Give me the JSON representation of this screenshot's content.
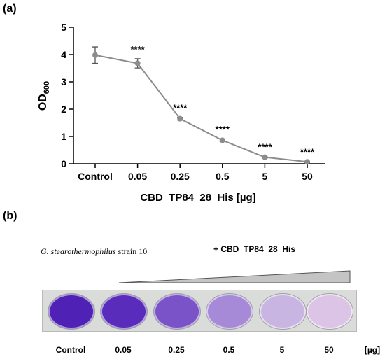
{
  "panel_a": {
    "label": "(a)"
  },
  "panel_b": {
    "label": "(b)",
    "strain_name": "G. stearothermophilus",
    "strain_suffix": " strain 10",
    "construct": "+ CBD_TP84_28_His",
    "unit": "[µg]",
    "wells": [
      {
        "label": "Control",
        "color": "#4f21b4"
      },
      {
        "label": "0.05",
        "color": "#5a2cbc"
      },
      {
        "label": "0.25",
        "color": "#7a53c8"
      },
      {
        "label": "0.5",
        "color": "#a68ad8"
      },
      {
        "label": "5",
        "color": "#c9b5e2"
      },
      {
        "label": "50",
        "color": "#dcc4e6"
      }
    ]
  },
  "chart_data": {
    "type": "line",
    "categories": [
      "Control",
      "0.05",
      "0.25",
      "0.5",
      "5",
      "50"
    ],
    "series": [
      {
        "values": [
          3.98,
          3.68,
          1.65,
          0.86,
          0.24,
          0.07
        ],
        "errors": [
          0.3,
          0.17,
          0.05,
          0.05,
          0.03,
          0.02
        ],
        "color": "#8c8c8c"
      }
    ],
    "annotations": [
      "",
      "****",
      "****",
      "****",
      "****",
      "****"
    ],
    "xlabel": "CBD_TP84_28_His [µg]",
    "ylabel_main": "OD",
    "ylabel_sub": "600",
    "ylim": [
      0,
      5
    ],
    "yticks": [
      0,
      1,
      2,
      3,
      4,
      5
    ],
    "grid": false
  }
}
